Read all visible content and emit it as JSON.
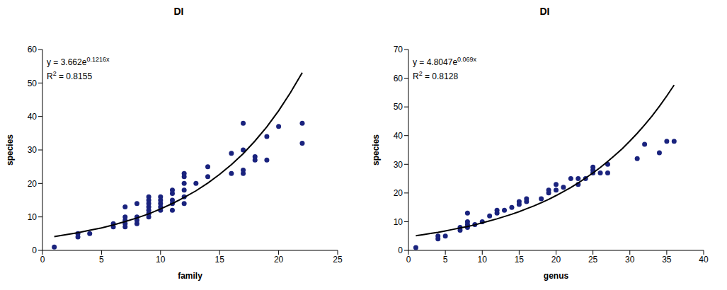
{
  "chart_data": [
    {
      "type": "scatter",
      "title": "DI",
      "x_label": "family",
      "y_label": "species",
      "xlim": [
        0,
        25
      ],
      "xticks": [
        0,
        5,
        10,
        15,
        20,
        25
      ],
      "ylim": [
        0,
        60
      ],
      "yticks": [
        0,
        10,
        20,
        30,
        40,
        50,
        60
      ],
      "grid": false,
      "color": "#1a237e",
      "marker": "circle",
      "x": [
        1,
        3,
        3,
        4,
        6,
        6,
        7,
        7,
        7,
        7,
        7,
        8,
        8,
        8,
        8,
        9,
        9,
        9,
        9,
        9,
        9,
        9,
        10,
        10,
        10,
        10,
        10,
        11,
        11,
        11,
        11,
        11,
        12,
        12,
        12,
        12,
        12,
        12,
        13,
        14,
        14,
        16,
        16,
        17,
        17,
        17,
        17,
        18,
        18,
        19,
        19,
        20,
        22,
        22
      ],
      "values": [
        1,
        4,
        5,
        5,
        7,
        8,
        7,
        8,
        9,
        10,
        13,
        8,
        9,
        10,
        14,
        10,
        11,
        12,
        13,
        14,
        15,
        16,
        12,
        13,
        14,
        15,
        16,
        12,
        14,
        15,
        17,
        18,
        14,
        16,
        18,
        20,
        22,
        23,
        20,
        22,
        25,
        23,
        29,
        23,
        24,
        30,
        38,
        27,
        28,
        27,
        34,
        37,
        32,
        38
      ],
      "trendline": {
        "color": "#000000",
        "line_style": "solid",
        "x": [
          1,
          2,
          3,
          4,
          5,
          6,
          7,
          8,
          9,
          10,
          11,
          12,
          13,
          14,
          15,
          16,
          17,
          18,
          19,
          20,
          21,
          22
        ],
        "values": [
          4.1,
          4.7,
          5.3,
          6.0,
          6.7,
          7.6,
          8.6,
          9.7,
          10.9,
          12.4,
          14.0,
          15.8,
          17.8,
          20.1,
          22.7,
          25.6,
          28.9,
          32.7,
          36.9,
          41.7,
          47.1,
          53.1
        ]
      },
      "annotations": [
        {
          "text": "y = 3.662e",
          "sup": "0.1216x",
          "tail": ""
        },
        {
          "text": "R",
          "sup": "2",
          "tail": " = 0.8155"
        }
      ]
    },
    {
      "type": "scatter",
      "title": "DI",
      "x_label": "genus",
      "y_label": "species",
      "xlim": [
        0,
        40
      ],
      "xticks": [
        0,
        5,
        10,
        15,
        20,
        25,
        30,
        35,
        40
      ],
      "ylim": [
        0,
        70
      ],
      "yticks": [
        0,
        10,
        20,
        30,
        40,
        50,
        60,
        70
      ],
      "grid": false,
      "color": "#1a237e",
      "marker": "circle",
      "x": [
        1,
        4,
        4,
        5,
        7,
        7,
        8,
        8,
        8,
        8,
        9,
        10,
        11,
        12,
        12,
        13,
        14,
        15,
        15,
        16,
        16,
        18,
        19,
        19,
        20,
        20,
        21,
        22,
        23,
        23,
        24,
        25,
        25,
        25,
        26,
        27,
        27,
        31,
        32,
        34,
        35,
        36
      ],
      "values": [
        1,
        4,
        5,
        5,
        7,
        8,
        8,
        9,
        10,
        13,
        9,
        10,
        12,
        13,
        14,
        14,
        15,
        16,
        17,
        17,
        18,
        18,
        20,
        21,
        21,
        23,
        22,
        25,
        23,
        25,
        25,
        27,
        28,
        29,
        27,
        27,
        30,
        32,
        37,
        34,
        38,
        38
      ],
      "trendline": {
        "color": "#000000",
        "line_style": "solid",
        "x": [
          1,
          2,
          3,
          4,
          5,
          6,
          7,
          8,
          9,
          10,
          11,
          12,
          13,
          14,
          15,
          16,
          17,
          18,
          19,
          20,
          21,
          22,
          23,
          24,
          25,
          26,
          27,
          28,
          29,
          30,
          31,
          32,
          33,
          34,
          35,
          36
        ],
        "values": [
          5.1,
          5.5,
          5.9,
          6.3,
          6.8,
          7.3,
          7.8,
          8.3,
          8.9,
          9.6,
          10.3,
          11.0,
          11.8,
          12.6,
          13.5,
          14.5,
          15.5,
          16.6,
          17.8,
          19.1,
          20.5,
          21.9,
          23.5,
          25.2,
          27.0,
          28.9,
          31.0,
          33.2,
          35.5,
          38.1,
          40.8,
          43.7,
          46.8,
          50.2,
          53.8,
          57.6
        ]
      },
      "annotations": [
        {
          "text": "y = 4.8047e",
          "sup": "0.069x",
          "tail": ""
        },
        {
          "text": "R",
          "sup": "2",
          "tail": " = 0.8128"
        }
      ]
    }
  ]
}
